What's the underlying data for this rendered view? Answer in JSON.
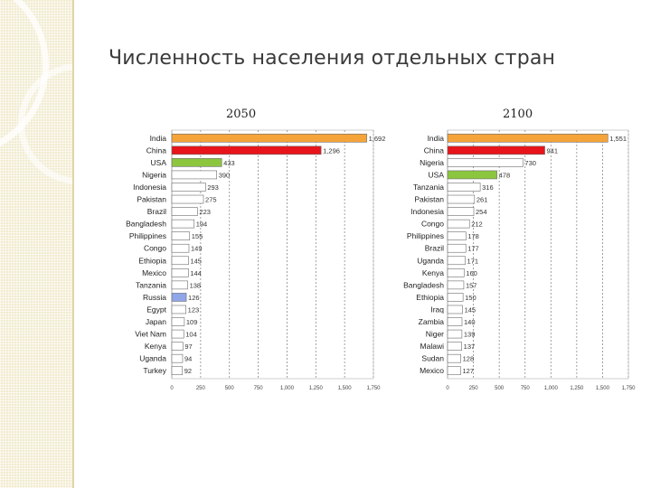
{
  "slide": {
    "title": "Численность населения отдельных стран"
  },
  "colors": {
    "highlight_orange": "#f5a43a",
    "highlight_red": "#e8141b",
    "highlight_green": "#8cc63f",
    "highlight_blue": "#8fa6e8",
    "default_bar": "#ffffff",
    "gridline": "#8a8a8a"
  },
  "chart_data": [
    {
      "type": "bar",
      "orientation": "horizontal",
      "title": "2050",
      "categories": [
        "India",
        "China",
        "USA",
        "Nigeria",
        "Indonesia",
        "Pakistan",
        "Brazil",
        "Bangladesh",
        "Philippines",
        "Congo",
        "Ethiopia",
        "Mexico",
        "Tanzania",
        "Russia",
        "Egypt",
        "Japan",
        "Viet Nam",
        "Kenya",
        "Uganda",
        "Turkey"
      ],
      "values": [
        1692,
        1296,
        433,
        390,
        293,
        275,
        223,
        194,
        155,
        149,
        145,
        144,
        138,
        126,
        123,
        109,
        104,
        97,
        94,
        92
      ],
      "value_labels": [
        "1,692",
        "1,296",
        "433",
        "390",
        "293",
        "275",
        "223",
        "194",
        "155",
        "149",
        "145",
        "144",
        "138",
        "126",
        "123",
        "109",
        "104",
        "97",
        "94",
        "92"
      ],
      "highlight": {
        "India": "orange",
        "China": "red",
        "USA": "green",
        "Russia": "blue"
      },
      "xlim": [
        0,
        1750
      ],
      "xticks": [
        0,
        250,
        500,
        750,
        1000,
        1250,
        1500,
        1750
      ],
      "xtick_labels": [
        "0",
        "250",
        "500",
        "750",
        "1,000",
        "1,250",
        "1,500",
        "1,750"
      ],
      "xlabel": "",
      "ylabel": "",
      "grid": "vertical"
    },
    {
      "type": "bar",
      "orientation": "horizontal",
      "title": "2100",
      "categories": [
        "India",
        "China",
        "Nigeria",
        "USA",
        "Tanzania",
        "Pakistan",
        "Indonesia",
        "Congo",
        "Philippines",
        "Brazil",
        "Uganda",
        "Kenya",
        "Bangladesh",
        "Ethiopia",
        "Iraq",
        "Zambia",
        "Niger",
        "Malawi",
        "Sudan",
        "Mexico"
      ],
      "values": [
        1551,
        941,
        730,
        478,
        316,
        261,
        254,
        212,
        178,
        177,
        171,
        160,
        157,
        150,
        145,
        140,
        139,
        137,
        128,
        127
      ],
      "value_labels": [
        "1,551",
        "941",
        "730",
        "478",
        "316",
        "261",
        "254",
        "212",
        "178",
        "177",
        "171",
        "160",
        "157",
        "150",
        "145",
        "140",
        "139",
        "137",
        "128",
        "127"
      ],
      "highlight": {
        "India": "orange",
        "China": "red",
        "USA": "green"
      },
      "xlim": [
        0,
        1750
      ],
      "xticks": [
        0,
        250,
        500,
        750,
        1000,
        1250,
        1500,
        1750
      ],
      "xtick_labels": [
        "0",
        "250",
        "500",
        "750",
        "1,000",
        "1,250",
        "1,500",
        "1,750"
      ],
      "xlabel": "",
      "ylabel": "",
      "grid": "vertical"
    }
  ]
}
